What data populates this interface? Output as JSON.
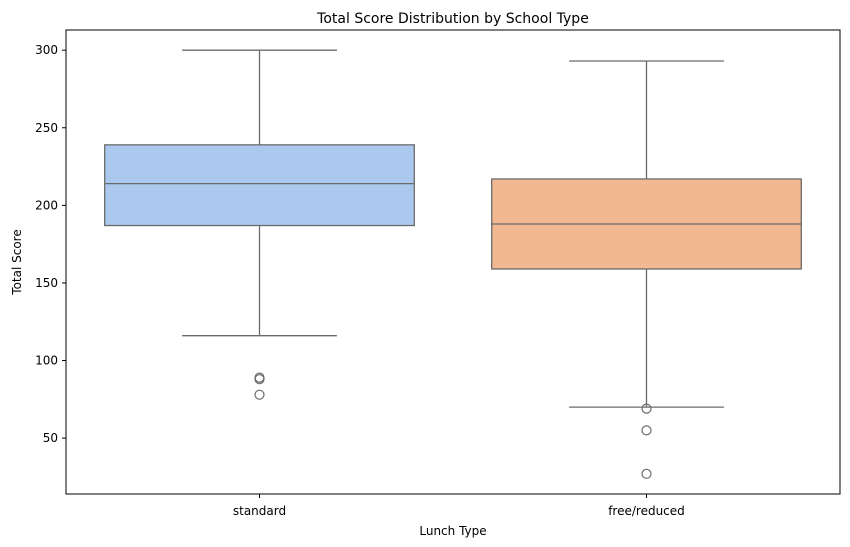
{
  "chart_data": {
    "type": "box",
    "title": "Total Score Distribution by School Type",
    "xlabel": "Lunch Type",
    "ylabel": "Total Score",
    "ylim": [
      14,
      313
    ],
    "yticks": [
      50,
      100,
      150,
      200,
      250,
      300
    ],
    "grid": false,
    "categories": [
      "standard",
      "free/reduced"
    ],
    "boxes": [
      {
        "category": "standard",
        "color": "#abc9ee",
        "whisker_low": 116,
        "q1": 187,
        "median": 214,
        "q3": 239,
        "whisker_high": 300,
        "outliers": [
          89,
          88,
          78
        ]
      },
      {
        "category": "free/reduced",
        "color": "#f1b891",
        "whisker_low": 70,
        "q1": 159,
        "median": 188,
        "q3": 217,
        "whisker_high": 293,
        "outliers": [
          69,
          55,
          27
        ]
      }
    ]
  }
}
